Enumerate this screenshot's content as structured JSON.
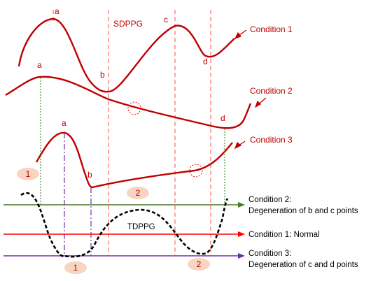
{
  "labels": {
    "sdppg": "SDPPG",
    "tdppg": "TDPPG",
    "condition_1": "Condition 1",
    "condition_2": "Condition 2",
    "condition_3": "Condition 3"
  },
  "points": {
    "c1_a": "a",
    "c1_b": "b",
    "c1_c": "c",
    "c1_d": "d",
    "c2_a": "a",
    "c2_d": "d",
    "c3_a": "a",
    "c3_b": "b"
  },
  "markers": {
    "left_1": "1",
    "mid_2": "2",
    "bottom_1": "1",
    "bottom_2": "2"
  },
  "axis_legend": {
    "cond2_line1": "Condition 2:",
    "cond2_line2": "Degeneration of b and c points",
    "cond1": "Condition 1: Normal",
    "cond3_line1": "Condition 3:",
    "cond3_line2": "Degeneration of c and d points"
  },
  "colors": {
    "red": "#c00000",
    "green": "#2f7d1e",
    "purple": "#7030a0",
    "marker_fill": "#f8d5c2"
  }
}
